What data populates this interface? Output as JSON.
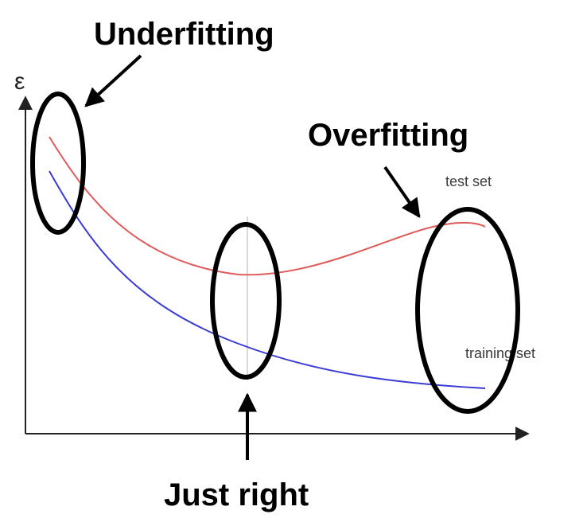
{
  "diagram": {
    "y_axis_symbol": "ε",
    "callouts": {
      "underfitting": "Underfitting",
      "overfitting": "Overfitting",
      "just_right": "Just right"
    },
    "curves": {
      "test_set": {
        "label": "test set",
        "color": "#e05a5a"
      },
      "training_set": {
        "label": "training set",
        "color": "#3b3bd6"
      }
    },
    "colors": {
      "axis": "#222222",
      "ellipse": "#000000",
      "arrow": "#000000",
      "divider": "#cccccc"
    }
  }
}
